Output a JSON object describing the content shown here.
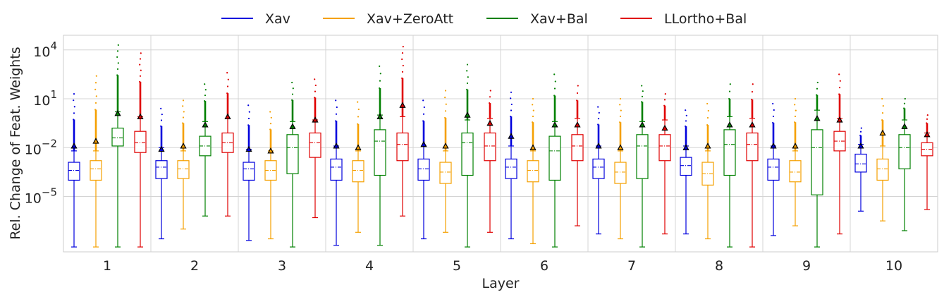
{
  "chart_data": {
    "type": "box",
    "title": "",
    "xlabel": "Layer",
    "ylabel": "Rel. Change of Feat. Weights",
    "yscale": "log",
    "ylim_exp": [
      -8.4,
      4.9
    ],
    "grid": true,
    "legend_position": "top-center",
    "categories": [
      "1",
      "2",
      "3",
      "4",
      "5",
      "6",
      "7",
      "8",
      "9",
      "10"
    ],
    "yticks": [
      {
        "exp": 4,
        "base": "10",
        "sup": "4"
      },
      {
        "exp": 1,
        "base": "10",
        "sup": "1"
      },
      {
        "exp": -2,
        "base": "10",
        "sup": "−2"
      },
      {
        "exp": -5,
        "base": "10",
        "sup": "−5"
      }
    ],
    "series": [
      {
        "name": "Xav",
        "color": "#0000dd",
        "boxes": [
          {
            "whislo": -8.1,
            "q1": -4.0,
            "med": -3.4,
            "q3": -2.9,
            "whishi": -2.2,
            "mean": -1.9,
            "fliermax": 1.3
          },
          {
            "whislo": -7.6,
            "q1": -3.9,
            "med": -3.2,
            "q3": -2.8,
            "whishi": -2.0,
            "mean": -2.1,
            "fliermax": 0.4
          },
          {
            "whislo": -7.7,
            "q1": -4.0,
            "med": -3.3,
            "q3": -2.9,
            "whishi": -2.1,
            "mean": -2.1,
            "fliermax": 0.6
          },
          {
            "whislo": -8.0,
            "q1": -4.0,
            "med": -3.2,
            "q3": -2.7,
            "whishi": -1.9,
            "mean": -1.9,
            "fliermax": 0.9
          },
          {
            "whislo": -7.6,
            "q1": -4.0,
            "med": -3.3,
            "q3": -2.7,
            "whishi": -1.9,
            "mean": -1.8,
            "fliermax": 0.9
          },
          {
            "whislo": -7.6,
            "q1": -3.9,
            "med": -3.2,
            "q3": -2.7,
            "whishi": -1.9,
            "mean": -1.3,
            "fliermax": 1.4
          },
          {
            "whislo": -7.3,
            "q1": -3.9,
            "med": -3.2,
            "q3": -2.7,
            "whishi": -1.9,
            "mean": -1.9,
            "fliermax": 0.5
          },
          {
            "whislo": -7.3,
            "q1": -3.7,
            "med": -3.1,
            "q3": -2.6,
            "whishi": -1.9,
            "mean": -2.0,
            "fliermax": 0.3
          },
          {
            "whislo": -7.4,
            "q1": -4.0,
            "med": -3.2,
            "q3": -2.7,
            "whishi": -1.9,
            "mean": -1.9,
            "fliermax": 0.7
          },
          {
            "whislo": -5.9,
            "q1": -3.5,
            "med": -3.0,
            "q3": -2.4,
            "whishi": -1.8,
            "mean": -1.9,
            "fliermax": -0.8
          }
        ]
      },
      {
        "name": "Xav+ZeroAtt",
        "color": "#f5a000",
        "boxes": [
          {
            "whislo": -8.1,
            "q1": -4.0,
            "med": -3.3,
            "q3": -2.8,
            "whishi": -2.2,
            "mean": -1.6,
            "fliermax": 2.4
          },
          {
            "whislo": -7.0,
            "q1": -3.9,
            "med": -3.3,
            "q3": -2.8,
            "whishi": -2.2,
            "mean": -1.9,
            "fliermax": 0.9
          },
          {
            "whislo": -7.6,
            "q1": -4.0,
            "med": -3.4,
            "q3": -2.8,
            "whishi": -2.2,
            "mean": -2.2,
            "fliermax": 0.2
          },
          {
            "whislo": -7.2,
            "q1": -4.1,
            "med": -3.4,
            "q3": -2.8,
            "whishi": -2.2,
            "mean": -2.0,
            "fliermax": 0.8
          },
          {
            "whislo": -7.2,
            "q1": -4.2,
            "med": -3.5,
            "q3": -2.9,
            "whishi": -2.2,
            "mean": -1.9,
            "fliermax": 1.5
          },
          {
            "whislo": -7.9,
            "q1": -4.1,
            "med": -3.4,
            "q3": -2.8,
            "whishi": -2.2,
            "mean": -2.0,
            "fliermax": 1.0
          },
          {
            "whislo": -7.6,
            "q1": -4.2,
            "med": -3.5,
            "q3": -2.9,
            "whishi": -2.2,
            "mean": -2.0,
            "fliermax": 1.0
          },
          {
            "whislo": -7.6,
            "q1": -4.3,
            "med": -3.6,
            "q3": -2.9,
            "whishi": -2.2,
            "mean": -1.9,
            "fliermax": 0.7
          },
          {
            "whislo": -6.8,
            "q1": -4.1,
            "med": -3.5,
            "q3": -2.8,
            "whishi": -2.2,
            "mean": -1.9,
            "fliermax": 1.0
          },
          {
            "whislo": -6.5,
            "q1": -4.0,
            "med": -3.3,
            "q3": -2.7,
            "whishi": -1.9,
            "mean": -1.1,
            "fliermax": 1.0
          }
        ]
      },
      {
        "name": "Xav+Bal",
        "color": "#008000",
        "boxes": [
          {
            "whislo": -8.1,
            "q1": -1.9,
            "med": -1.4,
            "q3": -0.8,
            "whishi": 0.2,
            "mean": 0.1,
            "fliermax": 4.3
          },
          {
            "whislo": -6.2,
            "q1": -2.5,
            "med": -1.9,
            "q3": -1.3,
            "whishi": -0.4,
            "mean": -0.6,
            "fliermax": 1.9
          },
          {
            "whislo": -8.1,
            "q1": -3.6,
            "med": -2.0,
            "q3": -1.2,
            "whishi": -0.4,
            "mean": -0.7,
            "fliermax": 2.0
          },
          {
            "whislo": -8.0,
            "q1": -3.7,
            "med": -1.6,
            "q3": -0.9,
            "whishi": 0.0,
            "mean": -0.1,
            "fliermax": 3.0
          },
          {
            "whislo": -8.1,
            "q1": -3.7,
            "med": -1.7,
            "q3": -1.1,
            "whishi": -0.3,
            "mean": 0.0,
            "fliermax": 3.1
          },
          {
            "whislo": -8.1,
            "q1": -4.0,
            "med": -2.2,
            "q3": -1.3,
            "whishi": -0.4,
            "mean": -0.6,
            "fliermax": 2.5
          },
          {
            "whislo": -8.1,
            "q1": -3.9,
            "med": -1.9,
            "q3": -1.2,
            "whishi": -0.4,
            "mean": -0.6,
            "fliermax": 1.8
          },
          {
            "whislo": -8.1,
            "q1": -3.7,
            "med": -1.8,
            "q3": -0.9,
            "whishi": -0.1,
            "mean": -0.6,
            "fliermax": 1.9
          },
          {
            "whislo": -8.1,
            "q1": -4.9,
            "med": -2.0,
            "q3": -0.9,
            "whishi": 0.3,
            "mean": -0.2,
            "fliermax": 2.0
          },
          {
            "whislo": -7.1,
            "q1": -3.3,
            "med": -2.0,
            "q3": -1.2,
            "whishi": -0.3,
            "mean": -0.7,
            "fliermax": 1.0
          }
        ]
      },
      {
        "name": "LLortho+Bal",
        "color": "#e00000",
        "boxes": [
          {
            "whislo": -8.1,
            "q1": -2.3,
            "med": -1.7,
            "q3": -1.0,
            "whishi": -0.1,
            "mean": -0.1,
            "fliermax": 3.8
          },
          {
            "whislo": -6.2,
            "q1": -2.3,
            "med": -1.7,
            "q3": -1.1,
            "whishi": -0.2,
            "mean": -0.1,
            "fliermax": 2.6
          },
          {
            "whislo": -6.3,
            "q1": -2.6,
            "med": -1.7,
            "q3": -1.1,
            "whishi": -0.3,
            "mean": -0.3,
            "fliermax": 2.2
          },
          {
            "whislo": -6.2,
            "q1": -2.8,
            "med": -1.8,
            "q3": -1.1,
            "whishi": -0.1,
            "mean": 0.6,
            "fliermax": 4.2
          },
          {
            "whislo": -7.2,
            "q1": -2.8,
            "med": -1.9,
            "q3": -1.1,
            "whishi": -0.2,
            "mean": -0.5,
            "fliermax": 1.5
          },
          {
            "whislo": -6.8,
            "q1": -2.8,
            "med": -1.9,
            "q3": -1.2,
            "whishi": -0.2,
            "mean": -0.6,
            "fliermax": 1.8
          },
          {
            "whislo": -7.3,
            "q1": -2.8,
            "med": -1.9,
            "q3": -1.2,
            "whishi": -0.3,
            "mean": -0.8,
            "fliermax": 1.3
          },
          {
            "whislo": -8.1,
            "q1": -2.8,
            "med": -1.8,
            "q3": -1.1,
            "whishi": -0.2,
            "mean": -0.6,
            "fliermax": 1.9
          },
          {
            "whislo": -7.3,
            "q1": -2.2,
            "med": -1.6,
            "q3": -1.0,
            "whishi": -0.2,
            "mean": -0.3,
            "fliermax": 2.5
          },
          {
            "whislo": -5.8,
            "q1": -2.5,
            "med": -2.1,
            "q3": -1.7,
            "whishi": -1.1,
            "mean": -1.2,
            "fliermax": 0.0
          }
        ]
      }
    ]
  }
}
